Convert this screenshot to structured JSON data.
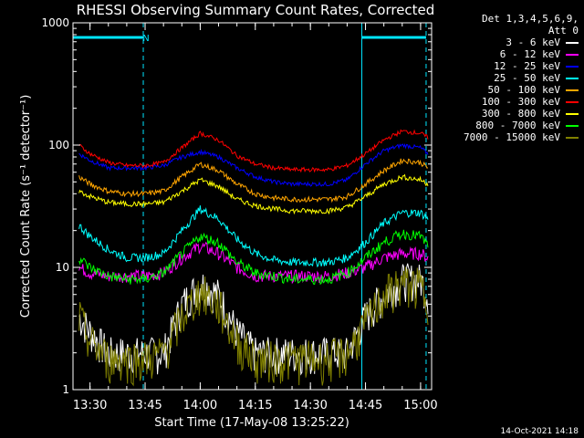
{
  "title": "RHESSI Observing Summary Count Rates, Corrected",
  "footer": "14-Oct-2021 14:18",
  "legend": {
    "header_line1": "Det 1,3,4,5,6,9,",
    "header_line2": "Att 0"
  },
  "colors": {
    "background": "#000000",
    "axes": "#ffffff",
    "markers": "#00e5ff"
  },
  "chart_data": {
    "type": "line",
    "title": "RHESSI Observing Summary Count Rates, Corrected",
    "xlabel": "Start Time (17-May-08 13:25:22)",
    "ylabel": "Corrected Count Rate (s⁻¹ detector⁻¹)",
    "yscale": "log",
    "ylim": [
      1,
      1000
    ],
    "xlim": [
      "13:25:22",
      "15:03:00"
    ],
    "x_ticks": [
      "13:30",
      "13:45",
      "14:00",
      "14:15",
      "14:30",
      "14:45",
      "15:00"
    ],
    "y_ticks": [
      "1",
      "10",
      "100",
      "1000"
    ],
    "legend_placement": "right",
    "annotation": "N",
    "markers": [
      "13:25:22",
      "13:44:30",
      "14:44:00",
      "15:01:30"
    ],
    "x": [
      "13:27",
      "13:30",
      "13:35",
      "13:40",
      "13:45",
      "13:50",
      "13:55",
      "14:00",
      "14:05",
      "14:10",
      "14:15",
      "14:20",
      "14:25",
      "14:30",
      "14:35",
      "14:40",
      "14:45",
      "14:50",
      "14:55",
      "15:00",
      "15:02"
    ],
    "series": [
      {
        "name": "3 - 6 keV",
        "color": "#ffffff",
        "values": [
          4,
          3,
          2,
          2,
          2,
          2,
          5,
          7.5,
          6,
          3,
          2,
          2,
          2,
          2,
          2,
          2,
          4,
          6,
          8,
          8,
          6
        ]
      },
      {
        "name": "6 - 12 keV",
        "color": "#ff00ff",
        "values": [
          10,
          9,
          8.5,
          8.5,
          8.5,
          9,
          12,
          15,
          13,
          10,
          8.5,
          8.5,
          8.5,
          8.5,
          8.5,
          9,
          10,
          12,
          13,
          13,
          12
        ]
      },
      {
        "name": "12 - 25 keV",
        "color": "#0000ff",
        "values": [
          85,
          75,
          65,
          65,
          65,
          68,
          80,
          88,
          80,
          65,
          55,
          50,
          48,
          48,
          48,
          52,
          70,
          90,
          100,
          95,
          85
        ]
      },
      {
        "name": "25 - 50 keV",
        "color": "#00ffff",
        "values": [
          22,
          18,
          14,
          12,
          12,
          13,
          20,
          30,
          25,
          17,
          13,
          11.5,
          11,
          11,
          11,
          12,
          16,
          23,
          28,
          28,
          25
        ]
      },
      {
        "name": "50 - 100 keV",
        "color": "#ffa500",
        "values": [
          55,
          48,
          42,
          40,
          40,
          42,
          55,
          70,
          62,
          48,
          40,
          37,
          36,
          36,
          36,
          38,
          48,
          62,
          75,
          72,
          65
        ]
      },
      {
        "name": "100 - 300 keV",
        "color": "#ff0000",
        "values": [
          100,
          85,
          72,
          68,
          68,
          72,
          95,
          125,
          110,
          82,
          70,
          65,
          63,
          63,
          63,
          68,
          85,
          110,
          130,
          125,
          115
        ]
      },
      {
        "name": "300 - 800 keV",
        "color": "#ffff00",
        "values": [
          42,
          38,
          34,
          33,
          33,
          34,
          42,
          52,
          46,
          36,
          32,
          30,
          29,
          29,
          29,
          31,
          38,
          48,
          55,
          52,
          48
        ]
      },
      {
        "name": "800 - 7000 keV",
        "color": "#00ff00",
        "values": [
          12,
          10,
          8.5,
          8,
          8,
          9,
          13,
          18,
          16,
          11,
          9,
          8.5,
          8,
          8,
          8,
          9,
          12,
          16,
          19,
          18,
          15
        ]
      },
      {
        "name": "7000 - 15000 keV",
        "color": "#808000",
        "values": [
          4,
          2.5,
          1.8,
          1.8,
          1.8,
          2,
          4,
          6.5,
          5,
          2.5,
          1.8,
          1.8,
          1.8,
          1.8,
          1.8,
          2,
          3.5,
          6,
          7.5,
          7,
          5.5
        ]
      }
    ]
  }
}
